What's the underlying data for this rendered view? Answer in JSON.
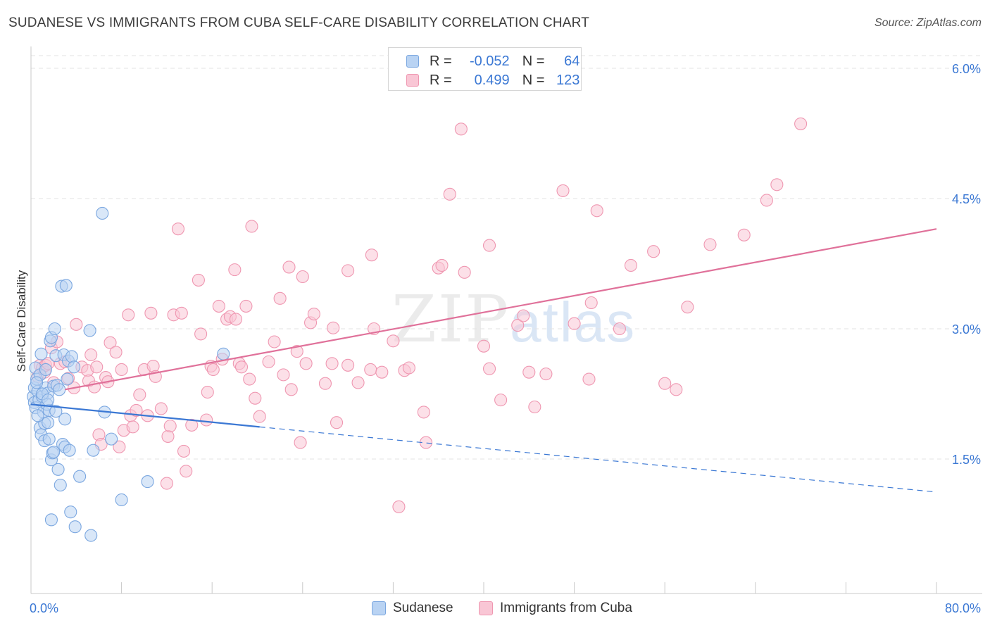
{
  "title": "SUDANESE VS IMMIGRANTS FROM CUBA SELF-CARE DISABILITY CORRELATION CHART",
  "source": "Source: ZipAtlas.com",
  "watermark": {
    "zip": "ZIP",
    "atlas": "atlas"
  },
  "legend": {
    "r_label": "R =",
    "n_label": "N =",
    "rows": [
      {
        "r": "-0.052",
        "n": "64"
      },
      {
        "r": "0.499",
        "n": "123"
      }
    ]
  },
  "bottom_legend": [
    "Sudanese",
    "Immigrants from Cuba"
  ],
  "colors": {
    "blue_fill": "#b9d3f3",
    "blue_stroke": "#7ba7e0",
    "blue_line": "#3b78d4",
    "pink_fill": "#f9c6d5",
    "pink_stroke": "#ef97b1",
    "pink_line": "#e0719a",
    "tick_label": "#3b78d4",
    "grid": "#e3e3e3"
  },
  "chart_data": {
    "type": "scatter",
    "title": "SUDANESE VS IMMIGRANTS FROM CUBA SELF-CARE DISABILITY CORRELATION CHART",
    "xlabel": "",
    "ylabel": "Self-Care Disability",
    "xlim": [
      0,
      80
    ],
    "ylim": [
      0,
      6.3
    ],
    "x_tick_labels": [
      "0.0%",
      "80.0%"
    ],
    "y_ticks": [
      1.5,
      3.0,
      4.5,
      6.0
    ],
    "y_tick_labels": [
      "1.5%",
      "3.0%",
      "4.5%",
      "6.0%"
    ],
    "grid": true,
    "legend_position": "top-center",
    "series": [
      {
        "name": "Sudanese",
        "color": "#7ba7e0",
        "r": -0.052,
        "n": 64,
        "trend": {
          "x": [
            0,
            20.2
          ],
          "y": [
            2.13,
            1.87
          ],
          "dashed_to": [
            80,
            1.12
          ]
        },
        "points": [
          [
            0.2,
            2.22
          ],
          [
            0.3,
            2.15
          ],
          [
            0.3,
            2.32
          ],
          [
            0.4,
            2.55
          ],
          [
            0.4,
            2.09
          ],
          [
            0.5,
            2.42
          ],
          [
            0.6,
            2.28
          ],
          [
            0.7,
            2.18
          ],
          [
            0.8,
            2.47
          ],
          [
            0.8,
            1.86
          ],
          [
            0.9,
            2.71
          ],
          [
            0.9,
            1.78
          ],
          [
            1.0,
            2.22
          ],
          [
            1.1,
            2.04
          ],
          [
            1.2,
            1.91
          ],
          [
            1.2,
            1.71
          ],
          [
            1.3,
            2.53
          ],
          [
            1.3,
            2.32
          ],
          [
            1.4,
            2.13
          ],
          [
            1.5,
            2.26
          ],
          [
            1.5,
            1.92
          ],
          [
            1.6,
            2.06
          ],
          [
            1.6,
            1.73
          ],
          [
            1.7,
            2.86
          ],
          [
            1.8,
            2.9
          ],
          [
            1.8,
            1.49
          ],
          [
            1.8,
            0.8
          ],
          [
            1.9,
            1.57
          ],
          [
            2.0,
            2.34
          ],
          [
            2.0,
            1.58
          ],
          [
            2.1,
            3.0
          ],
          [
            2.2,
            2.69
          ],
          [
            2.3,
            2.35
          ],
          [
            2.4,
            1.38
          ],
          [
            2.5,
            2.3
          ],
          [
            2.6,
            1.2
          ],
          [
            2.7,
            3.49
          ],
          [
            2.8,
            1.67
          ],
          [
            2.9,
            2.7
          ],
          [
            3.0,
            1.96
          ],
          [
            3.0,
            1.64
          ],
          [
            3.1,
            3.5
          ],
          [
            3.2,
            2.42
          ],
          [
            3.3,
            2.63
          ],
          [
            3.4,
            1.6
          ],
          [
            3.5,
            0.89
          ],
          [
            3.6,
            2.68
          ],
          [
            3.8,
            2.56
          ],
          [
            3.9,
            0.72
          ],
          [
            4.3,
            1.3
          ],
          [
            5.2,
            2.98
          ],
          [
            5.3,
            0.62
          ],
          [
            5.5,
            1.6
          ],
          [
            6.3,
            4.33
          ],
          [
            6.5,
            2.04
          ],
          [
            7.1,
            1.73
          ],
          [
            8.0,
            1.03
          ],
          [
            10.3,
            1.24
          ],
          [
            17.0,
            2.71
          ],
          [
            0.6,
            2.0
          ],
          [
            1.0,
            2.25
          ],
          [
            0.5,
            2.38
          ],
          [
            1.5,
            2.18
          ],
          [
            2.2,
            2.05
          ]
        ]
      },
      {
        "name": "Immigrants from Cuba",
        "color": "#ef97b1",
        "r": 0.499,
        "n": 123,
        "trend": {
          "x": [
            3.0,
            80
          ],
          "y": [
            2.3,
            4.15
          ]
        },
        "points": [
          [
            0.6,
            2.45
          ],
          [
            0.8,
            2.58
          ],
          [
            1.0,
            2.55
          ],
          [
            1.2,
            2.5
          ],
          [
            1.3,
            2.58
          ],
          [
            1.5,
            2.6
          ],
          [
            1.8,
            2.78
          ],
          [
            2.0,
            2.38
          ],
          [
            2.3,
            2.85
          ],
          [
            2.6,
            2.6
          ],
          [
            3.0,
            2.62
          ],
          [
            3.3,
            2.43
          ],
          [
            3.8,
            2.32
          ],
          [
            4.0,
            3.05
          ],
          [
            4.5,
            2.56
          ],
          [
            5.0,
            2.52
          ],
          [
            5.1,
            2.4
          ],
          [
            5.3,
            2.7
          ],
          [
            5.6,
            2.33
          ],
          [
            5.8,
            2.56
          ],
          [
            6.0,
            1.78
          ],
          [
            6.2,
            1.67
          ],
          [
            6.6,
            2.44
          ],
          [
            6.8,
            2.39
          ],
          [
            7.0,
            2.84
          ],
          [
            7.5,
            2.73
          ],
          [
            7.8,
            1.64
          ],
          [
            8.0,
            2.53
          ],
          [
            8.2,
            1.83
          ],
          [
            8.6,
            3.16
          ],
          [
            8.8,
            2.0
          ],
          [
            9.0,
            1.87
          ],
          [
            9.3,
            2.06
          ],
          [
            9.6,
            2.24
          ],
          [
            10.0,
            2.53
          ],
          [
            10.3,
            2.0
          ],
          [
            10.6,
            3.18
          ],
          [
            10.8,
            2.57
          ],
          [
            11.0,
            2.45
          ],
          [
            11.5,
            2.08
          ],
          [
            12.0,
            1.22
          ],
          [
            12.1,
            1.76
          ],
          [
            12.3,
            1.88
          ],
          [
            12.6,
            3.16
          ],
          [
            13.0,
            4.15
          ],
          [
            13.3,
            3.18
          ],
          [
            13.5,
            1.59
          ],
          [
            13.7,
            1.36
          ],
          [
            14.2,
            1.89
          ],
          [
            14.8,
            3.56
          ],
          [
            15.0,
            2.94
          ],
          [
            15.5,
            1.95
          ],
          [
            15.6,
            2.27
          ],
          [
            15.9,
            2.57
          ],
          [
            16.1,
            2.53
          ],
          [
            16.6,
            3.26
          ],
          [
            16.9,
            2.65
          ],
          [
            17.3,
            3.11
          ],
          [
            17.6,
            3.14
          ],
          [
            18.0,
            3.68
          ],
          [
            18.1,
            3.11
          ],
          [
            18.4,
            2.6
          ],
          [
            18.6,
            2.56
          ],
          [
            19.0,
            3.26
          ],
          [
            19.3,
            2.42
          ],
          [
            19.5,
            4.18
          ],
          [
            19.8,
            2.2
          ],
          [
            20.2,
            1.99
          ],
          [
            21.0,
            2.62
          ],
          [
            21.5,
            2.85
          ],
          [
            22.0,
            3.35
          ],
          [
            22.3,
            2.47
          ],
          [
            22.8,
            3.71
          ],
          [
            23.0,
            2.3
          ],
          [
            23.5,
            2.74
          ],
          [
            23.8,
            1.69
          ],
          [
            24.0,
            3.6
          ],
          [
            24.3,
            2.6
          ],
          [
            24.7,
            3.07
          ],
          [
            25.0,
            3.17
          ],
          [
            26.0,
            2.37
          ],
          [
            26.7,
            3.01
          ],
          [
            27.0,
            1.92
          ],
          [
            28.0,
            2.58
          ],
          [
            28.0,
            3.67
          ],
          [
            28.9,
            2.38
          ],
          [
            30.0,
            2.53
          ],
          [
            30.1,
            3.85
          ],
          [
            30.3,
            3.0
          ],
          [
            31.0,
            2.5
          ],
          [
            32.0,
            2.86
          ],
          [
            33.0,
            2.52
          ],
          [
            33.4,
            2.55
          ],
          [
            34.7,
            2.04
          ],
          [
            34.9,
            1.69
          ],
          [
            36.0,
            3.7
          ],
          [
            36.3,
            3.73
          ],
          [
            37.0,
            4.55
          ],
          [
            38.0,
            5.3
          ],
          [
            38.3,
            3.65
          ],
          [
            40.0,
            2.8
          ],
          [
            40.5,
            2.54
          ],
          [
            40.5,
            3.96
          ],
          [
            41.5,
            2.18
          ],
          [
            43.0,
            3.04
          ],
          [
            43.5,
            3.15
          ],
          [
            44.0,
            2.5
          ],
          [
            45.5,
            2.48
          ],
          [
            47.0,
            4.59
          ],
          [
            48.0,
            3.06
          ],
          [
            49.3,
            2.42
          ],
          [
            49.5,
            3.3
          ],
          [
            50.0,
            4.36
          ],
          [
            52.0,
            3.0
          ],
          [
            53.0,
            3.73
          ],
          [
            55.0,
            3.89
          ],
          [
            56.0,
            2.37
          ],
          [
            57.0,
            2.3
          ],
          [
            58.0,
            3.25
          ],
          [
            60.0,
            3.97
          ],
          [
            63.0,
            4.08
          ],
          [
            65.0,
            4.48
          ],
          [
            65.9,
            4.66
          ],
          [
            68.0,
            5.36
          ],
          [
            32.5,
            0.95
          ],
          [
            26.6,
            2.6
          ],
          [
            44.5,
            2.1
          ]
        ]
      }
    ]
  }
}
